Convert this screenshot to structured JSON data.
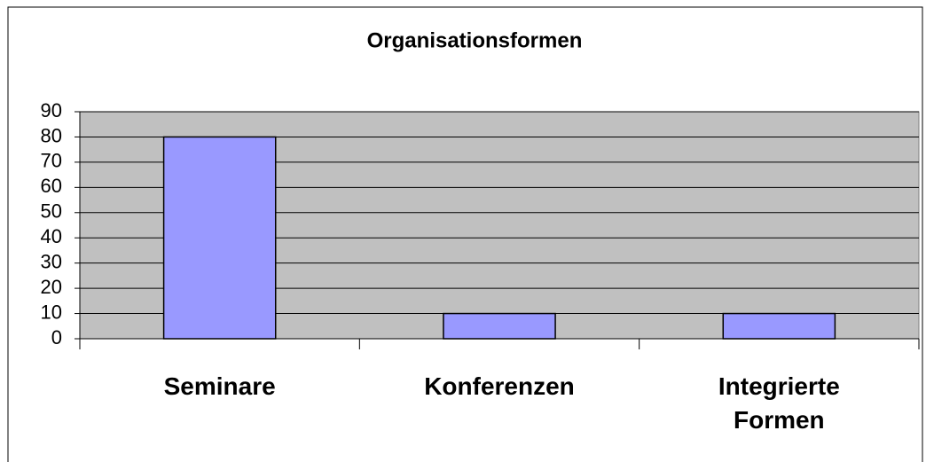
{
  "chart_data": {
    "type": "bar",
    "title": "Organisationsformen",
    "categories": [
      "Seminare",
      "Konferenzen",
      "Integrierte Formen"
    ],
    "values": [
      80,
      10,
      10
    ],
    "color": "#9999ff",
    "ylim": [
      0,
      90
    ],
    "yticks": [
      0,
      10,
      20,
      30,
      40,
      50,
      60,
      70,
      80,
      90
    ],
    "grid": true
  }
}
